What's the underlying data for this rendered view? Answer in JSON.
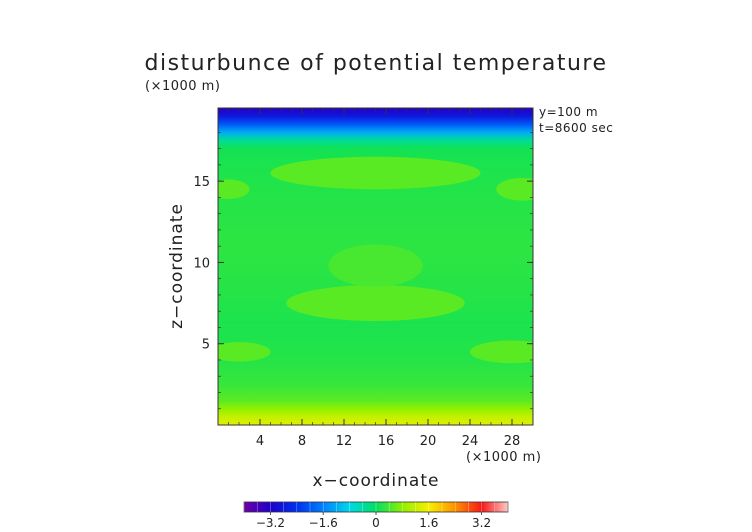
{
  "chart_data": {
    "type": "heatmap",
    "title": "disturbunce of potential temperature",
    "units_top": "(×1000 m)",
    "units_bottom": "(×1000 m)",
    "xlabel": "x−coordinate",
    "ylabel": "z−coordinate",
    "annotations": [
      "y=100 m",
      "t=8600 sec"
    ],
    "xlim": [
      0,
      30
    ],
    "ylim": [
      0,
      19.5
    ],
    "x_ticks": [
      4,
      8,
      12,
      16,
      20,
      24,
      28
    ],
    "x_tick_labels": [
      "4",
      "8",
      "12",
      "16",
      "20",
      "24",
      "28"
    ],
    "y_ticks": [
      5,
      10,
      15
    ],
    "y_tick_labels": [
      "5",
      "10",
      "15"
    ],
    "colorbar": {
      "min": -4,
      "max": 4,
      "ticks": [
        -3.2,
        -1.6,
        0,
        1.6,
        3.2
      ],
      "tick_labels": [
        "−3.2",
        "−1.6",
        "0",
        "1.6",
        "3.2"
      ]
    },
    "colormap": {
      "stops": [
        [
          -4.0,
          "#6f00a8"
        ],
        [
          -3.2,
          "#1e00c8"
        ],
        [
          -2.4,
          "#0030f0"
        ],
        [
          -1.6,
          "#0080ff"
        ],
        [
          -0.8,
          "#00d8e8"
        ],
        [
          0.0,
          "#00e060"
        ],
        [
          0.8,
          "#90f000"
        ],
        [
          1.6,
          "#f8f000"
        ],
        [
          2.4,
          "#ff9000"
        ],
        [
          3.2,
          "#f81818"
        ],
        [
          4.0,
          "#ffc8c8"
        ]
      ]
    },
    "field": {
      "z_levels": [
        0.0,
        0.5,
        1.0,
        1.5,
        2.5,
        4.0,
        6.0,
        8.0,
        11.0,
        14.0,
        16.0,
        17.0,
        17.5,
        18.0,
        18.5,
        19.0,
        19.5
      ],
      "values": [
        1.4,
        1.2,
        0.8,
        0.5,
        0.3,
        0.2,
        0.15,
        0.2,
        0.25,
        0.2,
        0.15,
        0.1,
        -0.3,
        -1.2,
        -2.0,
        -2.8,
        -3.3
      ]
    },
    "regions": [
      {
        "type": "ellipse",
        "cx": 15.0,
        "cy": 15.5,
        "rx": 10.0,
        "ry": 1.0,
        "value": 0.5
      },
      {
        "type": "ellipse",
        "cx": 1.0,
        "cy": 14.5,
        "rx": 2.0,
        "ry": 0.6,
        "value": 0.5
      },
      {
        "type": "ellipse",
        "cx": 29.0,
        "cy": 14.5,
        "rx": 2.5,
        "ry": 0.7,
        "value": 0.5
      },
      {
        "type": "ellipse",
        "cx": 15.0,
        "cy": 7.5,
        "rx": 8.5,
        "ry": 1.1,
        "value": 0.5
      },
      {
        "type": "ellipse",
        "cx": 15.0,
        "cy": 9.8,
        "rx": 4.5,
        "ry": 1.3,
        "value": 0.4
      },
      {
        "type": "ellipse",
        "cx": 2.0,
        "cy": 4.5,
        "rx": 3.0,
        "ry": 0.6,
        "value": 0.5
      },
      {
        "type": "ellipse",
        "cx": 28.0,
        "cy": 4.5,
        "rx": 4.0,
        "ry": 0.7,
        "value": 0.5
      }
    ]
  }
}
